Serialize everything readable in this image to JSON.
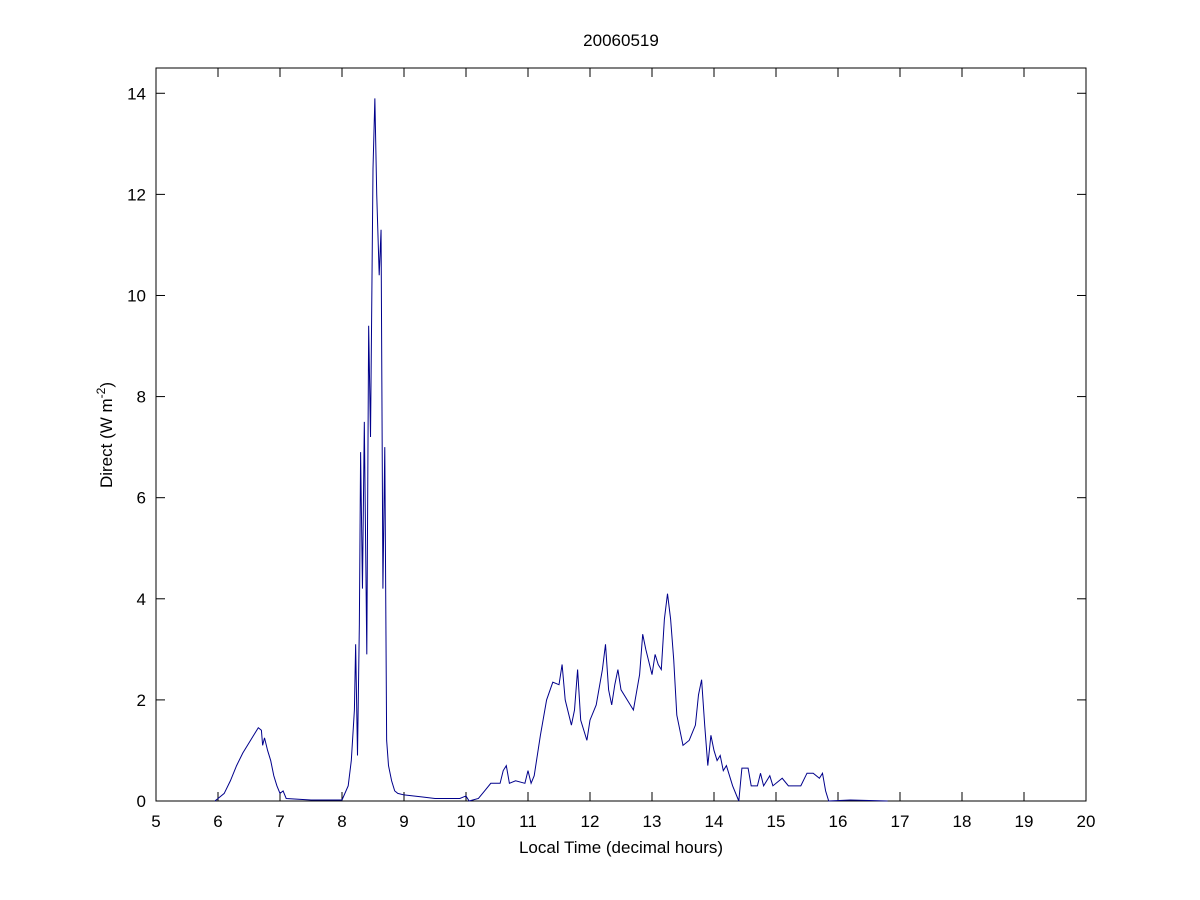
{
  "chart_data": {
    "type": "line",
    "title": "20060519",
    "xlabel": "Local Time (decimal hours)",
    "ylabel": {
      "text": "Direct (W m",
      "superscript": "-2",
      "suffix": ")"
    },
    "xlim": [
      5,
      20
    ],
    "xticks": [
      5,
      6,
      7,
      8,
      9,
      10,
      11,
      12,
      13,
      14,
      15,
      16,
      17,
      18,
      19,
      20
    ],
    "ylim": [
      0,
      14.5
    ],
    "yticks": [
      0,
      2,
      4,
      6,
      8,
      10,
      12,
      14
    ],
    "grid": false,
    "series": [
      {
        "color": "#00008b",
        "x": [
          5.95,
          6.0,
          6.1,
          6.2,
          6.3,
          6.4,
          6.5,
          6.6,
          6.65,
          6.7,
          6.72,
          6.75,
          6.8,
          6.85,
          6.9,
          6.95,
          7.0,
          7.05,
          7.1,
          7.5,
          8.0,
          8.1,
          8.15,
          8.2,
          8.22,
          8.25,
          8.28,
          8.3,
          8.33,
          8.36,
          8.4,
          8.43,
          8.46,
          8.5,
          8.53,
          8.56,
          8.6,
          8.63,
          8.66,
          8.69,
          8.72,
          8.75,
          8.8,
          8.85,
          8.9,
          9.0,
          9.3,
          9.5,
          9.9,
          10.0,
          10.05,
          10.2,
          10.3,
          10.4,
          10.55,
          10.6,
          10.65,
          10.7,
          10.8,
          10.95,
          11.0,
          11.05,
          11.1,
          11.2,
          11.3,
          11.4,
          11.5,
          11.55,
          11.6,
          11.7,
          11.75,
          11.8,
          11.85,
          11.95,
          12.0,
          12.1,
          12.2,
          12.25,
          12.3,
          12.35,
          12.4,
          12.45,
          12.5,
          12.6,
          12.7,
          12.8,
          12.85,
          12.9,
          13.0,
          13.05,
          13.1,
          13.15,
          13.2,
          13.25,
          13.3,
          13.35,
          13.4,
          13.5,
          13.6,
          13.7,
          13.75,
          13.8,
          13.85,
          13.9,
          13.95,
          14.0,
          14.05,
          14.1,
          14.15,
          14.2,
          14.3,
          14.4,
          14.45,
          14.55,
          14.6,
          14.7,
          14.75,
          14.8,
          14.9,
          14.95,
          15.1,
          15.2,
          15.4,
          15.5,
          15.6,
          15.7,
          15.75,
          15.8,
          15.85,
          16.2,
          16.8
        ],
        "values": [
          0,
          0.05,
          0.15,
          0.4,
          0.7,
          0.95,
          1.15,
          1.35,
          1.45,
          1.4,
          1.1,
          1.25,
          1.0,
          0.8,
          0.5,
          0.3,
          0.15,
          0.2,
          0.05,
          0.02,
          0.02,
          0.3,
          0.8,
          1.8,
          3.1,
          0.9,
          3.5,
          6.9,
          4.2,
          7.5,
          2.9,
          9.4,
          7.2,
          12.5,
          13.9,
          12.0,
          10.4,
          11.3,
          4.2,
          7.0,
          1.2,
          0.7,
          0.4,
          0.2,
          0.15,
          0.12,
          0.08,
          0.05,
          0.05,
          0.1,
          0,
          0.05,
          0.2,
          0.35,
          0.35,
          0.6,
          0.7,
          0.35,
          0.4,
          0.35,
          0.6,
          0.35,
          0.5,
          1.3,
          2.0,
          2.35,
          2.3,
          2.7,
          2.0,
          1.5,
          1.8,
          2.6,
          1.6,
          1.2,
          1.6,
          1.9,
          2.6,
          3.1,
          2.2,
          1.9,
          2.3,
          2.6,
          2.2,
          2.0,
          1.8,
          2.5,
          3.3,
          3.0,
          2.5,
          2.9,
          2.7,
          2.6,
          3.6,
          4.1,
          3.6,
          2.8,
          1.7,
          1.1,
          1.2,
          1.5,
          2.1,
          2.4,
          1.5,
          0.7,
          1.3,
          1.0,
          0.8,
          0.9,
          0.6,
          0.7,
          0.3,
          0,
          0.65,
          0.65,
          0.3,
          0.3,
          0.55,
          0.3,
          0.5,
          0.3,
          0.45,
          0.3,
          0.3,
          0.55,
          0.55,
          0.45,
          0.55,
          0.2,
          0,
          0.02,
          0
        ]
      }
    ]
  }
}
